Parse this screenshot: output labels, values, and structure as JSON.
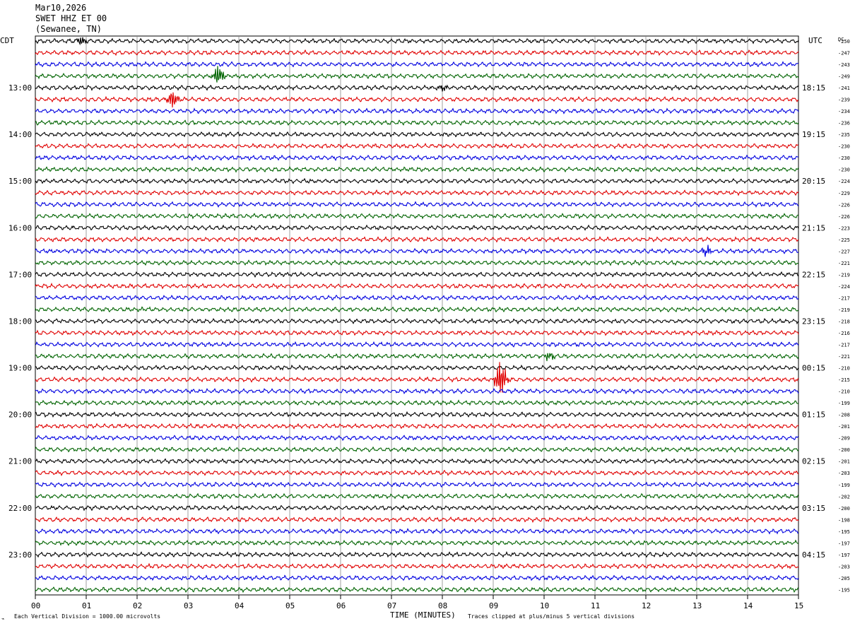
{
  "header": {
    "date": "Mar10,2026",
    "station": "SWET HHZ ET 00",
    "location": "(Sewanee, TN)"
  },
  "chart_data": {
    "type": "line",
    "left_timezone": "CDT",
    "right_timezone": "UTC",
    "dc_label": "DC",
    "xlabel": "TIME (MINUTES)",
    "x_ticks": [
      "00",
      "01",
      "02",
      "03",
      "04",
      "05",
      "06",
      "07",
      "08",
      "09",
      "10",
      "11",
      "12",
      "13",
      "14",
      "15"
    ],
    "xlim": [
      0,
      15
    ],
    "trace_count": 48,
    "traces_per_hour": 4,
    "trace_colors": [
      "#000000",
      "#e00000",
      "#0000e0",
      "#006400"
    ],
    "hour_labels_left": [
      "13:00",
      "14:00",
      "15:00",
      "16:00",
      "17:00",
      "18:00",
      "19:00",
      "20:00",
      "21:00",
      "22:00",
      "23:00"
    ],
    "hour_labels_right": [
      "18:15",
      "19:15",
      "20:15",
      "21:15",
      "22:15",
      "23:15",
      "00:15",
      "01:15",
      "02:15",
      "03:15",
      "04:15"
    ],
    "hour_label_first_row": 4,
    "dc_offsets": [
      "-250",
      "-247",
      "-243",
      "-249",
      "-241",
      "-239",
      "-234",
      "-236",
      "-235",
      "-230",
      "-230",
      "-230",
      "-224",
      "-229",
      "-226",
      "-226",
      "-223",
      "-225",
      "-227",
      "-221",
      "-219",
      "-224",
      "-217",
      "-219",
      "-218",
      "-216",
      "-217",
      "-221",
      "-210",
      "-215",
      "-210",
      "-199",
      "-208",
      "-201",
      "-209",
      "-200",
      "-201",
      "-203",
      "-199",
      "-202",
      "-200",
      "-198",
      "-195",
      "-197",
      "-197",
      "-203",
      "-205",
      "-195"
    ],
    "events": [
      {
        "trace": 0,
        "minute": 0.9,
        "amplitude": 1.1
      },
      {
        "trace": 3,
        "minute": 3.6,
        "amplitude": 2.2
      },
      {
        "trace": 4,
        "minute": 8.0,
        "amplitude": 0.6
      },
      {
        "trace": 5,
        "minute": 2.7,
        "amplitude": 2.0
      },
      {
        "trace": 18,
        "minute": 13.2,
        "amplitude": 1.2
      },
      {
        "trace": 27,
        "minute": 10.1,
        "amplitude": 1.0
      },
      {
        "trace": 29,
        "minute": 9.15,
        "amplitude": 4.5
      }
    ],
    "footer_left": "Each Vertical Division = 1000.00 microvolts",
    "footer_right": "Traces clipped at plus/minus 5 vertical divisions"
  }
}
